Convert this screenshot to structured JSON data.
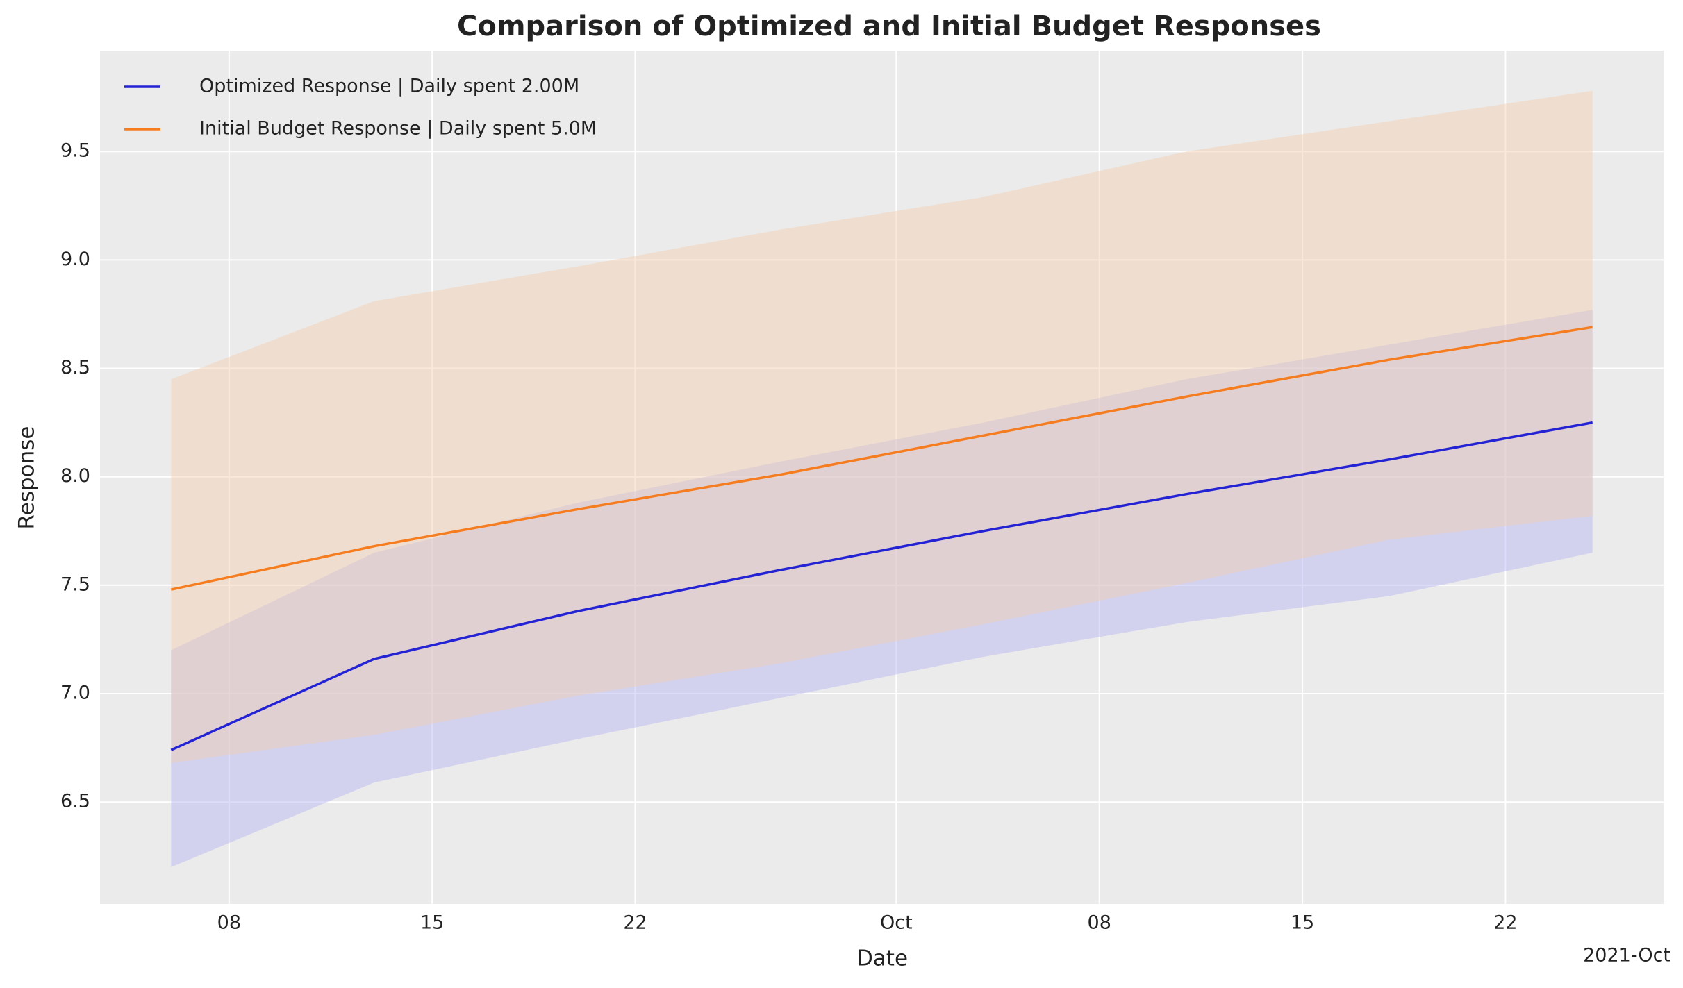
{
  "chart_data": {
    "type": "line",
    "title": "Comparison of Optimized and Initial Budget Responses",
    "xlabel": "Date",
    "ylabel": "Response",
    "x_offset_label": "2021-Oct",
    "x": [
      "2021-09-06",
      "2021-09-13",
      "2021-09-20",
      "2021-09-27",
      "2021-10-04",
      "2021-10-11",
      "2021-10-18",
      "2021-10-25"
    ],
    "series": [
      {
        "name": "Optimized Response | Daily spent 2.00M",
        "color": "#2323d4",
        "values": [
          6.74,
          7.16,
          7.38,
          7.57,
          7.75,
          7.92,
          8.08,
          8.25
        ],
        "lower": [
          6.2,
          6.59,
          6.79,
          6.98,
          7.17,
          7.33,
          7.45,
          7.65
        ],
        "upper": [
          7.2,
          7.65,
          7.88,
          8.07,
          8.25,
          8.45,
          8.61,
          8.77
        ],
        "band_color": "#b3b3f5"
      },
      {
        "name": "Initial Budget Response | Daily spent 5.0M",
        "color": "#f57c1f",
        "values": [
          7.48,
          7.68,
          7.85,
          8.01,
          8.19,
          8.37,
          8.54,
          8.69
        ],
        "lower": [
          6.68,
          6.81,
          6.99,
          7.14,
          7.32,
          7.51,
          7.71,
          7.82
        ],
        "upper": [
          8.45,
          8.81,
          8.97,
          9.14,
          9.29,
          9.5,
          9.64,
          9.78
        ],
        "band_color": "#f5cfae"
      }
    ],
    "band_opacity": 0.45,
    "xlim": [
      "2021-09-03T13:12",
      "2021-10-27T10:48"
    ],
    "xticks": [
      {
        "value": "2021-09-08",
        "label": "08"
      },
      {
        "value": "2021-09-15",
        "label": "15"
      },
      {
        "value": "2021-09-22",
        "label": "22"
      },
      {
        "value": "2021-10-01",
        "label": "Oct"
      },
      {
        "value": "2021-10-08",
        "label": "08"
      },
      {
        "value": "2021-10-15",
        "label": "15"
      },
      {
        "value": "2021-10-22",
        "label": "22"
      }
    ],
    "ylim": [
      6.03,
      9.965
    ],
    "yticks": [
      6.5,
      {
        "value": 7,
        "label": "7.0"
      },
      7.5,
      {
        "value": 8,
        "label": "8.0"
      },
      8.5,
      {
        "value": 9,
        "label": "9.0"
      },
      9.5
    ],
    "grid": true,
    "legend": "upper-left",
    "background": "#ebebeb"
  }
}
